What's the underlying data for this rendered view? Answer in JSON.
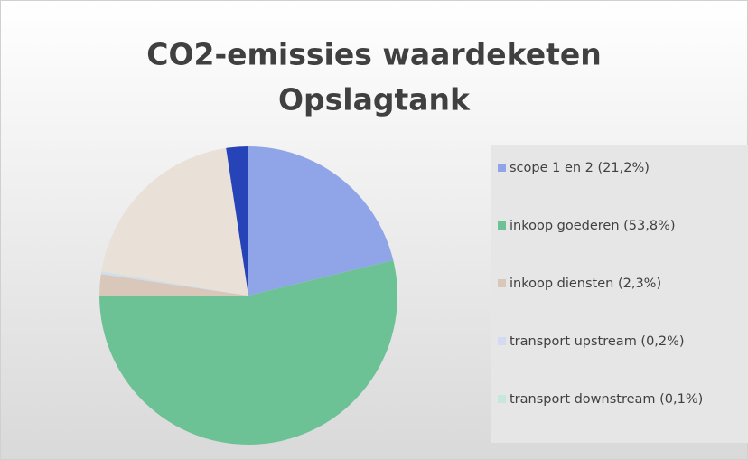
{
  "chart_data": {
    "type": "pie",
    "title": [
      "CO2-emissies waardeketen",
      "Opslagtank"
    ],
    "categories": [
      "scope 1 en 2 (21,2%)",
      "inkoop goederen (53,8%)",
      "inkoop diensten (2,3%)",
      "transport upstream (0,2%)",
      "transport downstream (0,1%)",
      null,
      null
    ],
    "values": [
      21.2,
      53.8,
      2.3,
      0.2,
      0.1,
      20.0,
      2.4
    ],
    "colors": [
      "#8fa5e8",
      "#6cc195",
      "#d9c8b9",
      "#d4daf2",
      "#c6e8da",
      "#e9e1d7",
      "#2743b8"
    ],
    "legend": "right"
  }
}
